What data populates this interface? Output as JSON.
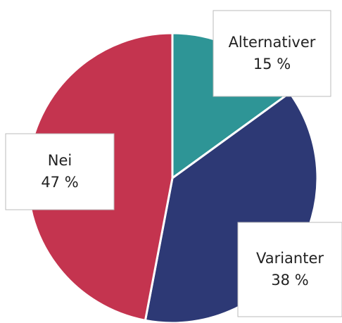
{
  "chart_data": {
    "type": "pie",
    "categories": [
      "Alternativer",
      "Varianter",
      "Nei"
    ],
    "values": [
      15,
      38,
      47
    ],
    "value_labels": [
      "15 %",
      "38 %",
      "47 %"
    ],
    "colors": [
      "#2e9596",
      "#2d3975",
      "#c4344f"
    ]
  }
}
